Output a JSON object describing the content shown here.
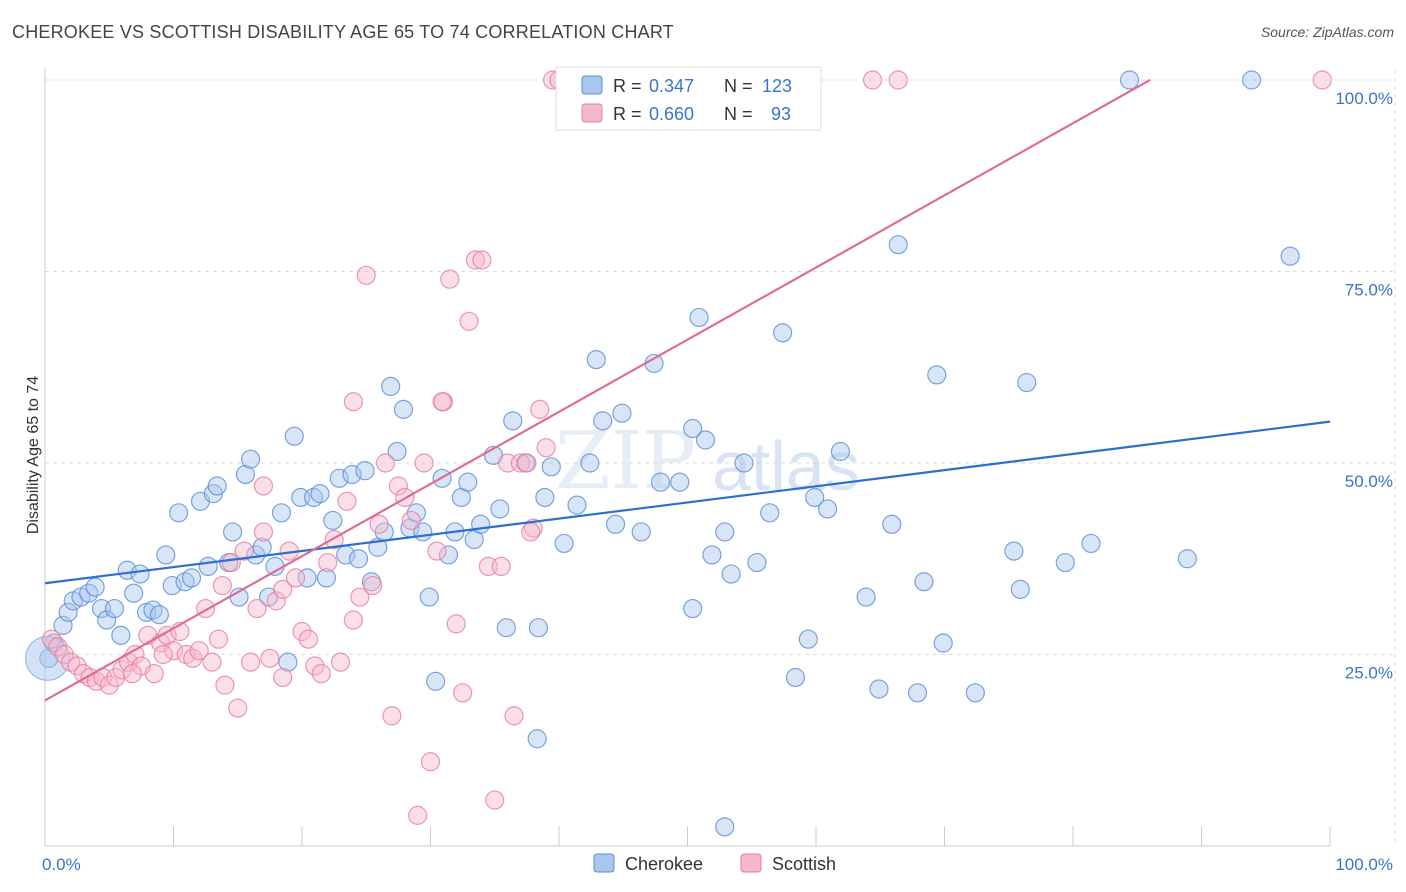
{
  "header": {
    "title": "CHEROKEE VS SCOTTISH DISABILITY AGE 65 TO 74 CORRELATION CHART",
    "source": "Source: ZipAtlas.com"
  },
  "watermark": {
    "zip": "ZIP",
    "atlas": "atlas"
  },
  "colors": {
    "cherokee_fill": "#a8c6ee",
    "cherokee_stroke": "#5a8fd6",
    "cherokee_line": "#2a6fd1",
    "scottish_fill": "#f6b9cc",
    "scottish_stroke": "#e67ea0",
    "scottish_line": "#e06b94",
    "tick_text": "#3a74c9",
    "grid": "#dcdcdc"
  },
  "legend_top": {
    "rows": [
      {
        "r_label": "R =",
        "r_value": "0.347",
        "n_label": "N =",
        "n_value": "123"
      },
      {
        "r_label": "R =",
        "r_value": "0.660",
        "n_label": "N =",
        "n_value": "93"
      }
    ]
  },
  "legend_bottom": {
    "items": [
      "Cherokee",
      "Scottish"
    ]
  },
  "chart_data": {
    "type": "scatter",
    "title": "CHEROKEE VS SCOTTISH DISABILITY AGE 65 TO 74 CORRELATION CHART",
    "xlabel": "",
    "ylabel": "Disability Age 65 to 74",
    "xlim": [
      0,
      100
    ],
    "ylim": [
      0,
      100
    ],
    "x_tick_labels": [
      "0.0%",
      "100.0%"
    ],
    "y_tick_labels": [
      "25.0%",
      "50.0%",
      "75.0%",
      "100.0%"
    ],
    "y_ticks": [
      25,
      50,
      75,
      100
    ],
    "grid": true,
    "legend_position": "top-center",
    "series": [
      {
        "name": "Cherokee",
        "r": 0.347,
        "n": 123,
        "trend": {
          "x0": 0,
          "y0": 34.3,
          "x1": 100,
          "y1": 55.4
        },
        "points": [
          [
            0.3,
            24.5
          ],
          [
            0.7,
            26.5
          ],
          [
            1.4,
            28.8
          ],
          [
            1.8,
            30.5
          ],
          [
            2.2,
            32.0
          ],
          [
            2.8,
            32.5
          ],
          [
            3.4,
            33.0
          ],
          [
            3.9,
            33.8
          ],
          [
            4.4,
            31.0
          ],
          [
            4.8,
            29.5
          ],
          [
            5.4,
            31.0
          ],
          [
            5.9,
            27.5
          ],
          [
            6.4,
            36.0
          ],
          [
            6.9,
            33.0
          ],
          [
            7.4,
            35.5
          ],
          [
            7.9,
            30.5
          ],
          [
            8.4,
            30.8
          ],
          [
            8.9,
            30.2
          ],
          [
            9.4,
            38.0
          ],
          [
            9.9,
            34.0
          ],
          [
            10.4,
            43.5
          ],
          [
            10.9,
            34.5
          ],
          [
            11.4,
            35.0
          ],
          [
            12.1,
            45.0
          ],
          [
            12.7,
            36.5
          ],
          [
            13.1,
            46.0
          ],
          [
            13.4,
            47.0
          ],
          [
            14.3,
            37.0
          ],
          [
            14.6,
            41.0
          ],
          [
            15.1,
            32.5
          ],
          [
            15.6,
            48.5
          ],
          [
            16.0,
            50.5
          ],
          [
            16.4,
            38.0
          ],
          [
            16.9,
            39.0
          ],
          [
            17.4,
            32.5
          ],
          [
            17.9,
            36.5
          ],
          [
            18.4,
            43.5
          ],
          [
            18.9,
            24.0
          ],
          [
            19.4,
            53.5
          ],
          [
            19.9,
            45.5
          ],
          [
            20.4,
            35.0
          ],
          [
            20.9,
            45.5
          ],
          [
            21.4,
            46.0
          ],
          [
            21.9,
            35.0
          ],
          [
            22.4,
            42.5
          ],
          [
            22.9,
            48.0
          ],
          [
            23.4,
            38.0
          ],
          [
            23.9,
            48.5
          ],
          [
            24.4,
            37.5
          ],
          [
            24.9,
            49.0
          ],
          [
            25.4,
            34.5
          ],
          [
            25.9,
            39.0
          ],
          [
            26.4,
            41.0
          ],
          [
            26.9,
            60.0
          ],
          [
            27.4,
            51.5
          ],
          [
            27.9,
            57.0
          ],
          [
            28.4,
            41.5
          ],
          [
            28.9,
            43.5
          ],
          [
            29.4,
            41.0
          ],
          [
            29.9,
            32.5
          ],
          [
            30.4,
            21.5
          ],
          [
            30.9,
            48.0
          ],
          [
            31.4,
            38.0
          ],
          [
            31.9,
            41.0
          ],
          [
            32.4,
            45.5
          ],
          [
            32.9,
            47.5
          ],
          [
            33.4,
            40.0
          ],
          [
            33.9,
            42.0
          ],
          [
            34.9,
            51.0
          ],
          [
            35.4,
            44.0
          ],
          [
            35.9,
            28.5
          ],
          [
            36.4,
            55.5
          ],
          [
            37.4,
            50.0
          ],
          [
            38.4,
            28.5
          ],
          [
            38.9,
            45.5
          ],
          [
            39.4,
            49.5
          ],
          [
            40.4,
            39.5
          ],
          [
            41.4,
            44.5
          ],
          [
            42.4,
            50.0
          ],
          [
            42.9,
            63.5
          ],
          [
            43.4,
            55.5
          ],
          [
            44.4,
            42.0
          ],
          [
            44.9,
            56.5
          ],
          [
            46.4,
            41.0
          ],
          [
            47.4,
            63.0
          ],
          [
            47.9,
            47.5
          ],
          [
            49.4,
            47.5
          ],
          [
            50.4,
            54.5
          ],
          [
            50.9,
            69.0
          ],
          [
            51.4,
            53.0
          ],
          [
            51.9,
            38.0
          ],
          [
            52.9,
            41.0
          ],
          [
            53.4,
            35.5
          ],
          [
            54.4,
            50.0
          ],
          [
            55.4,
            37.0
          ],
          [
            56.4,
            43.5
          ],
          [
            57.4,
            67.0
          ],
          [
            58.4,
            22.0
          ],
          [
            59.4,
            27.0
          ],
          [
            59.9,
            45.5
          ],
          [
            60.9,
            44.0
          ],
          [
            61.9,
            51.5
          ],
          [
            63.9,
            32.5
          ],
          [
            64.9,
            20.5
          ],
          [
            65.9,
            42.0
          ],
          [
            66.4,
            78.5
          ],
          [
            67.9,
            20.0
          ],
          [
            68.4,
            34.5
          ],
          [
            69.4,
            61.5
          ],
          [
            69.9,
            26.5
          ],
          [
            72.4,
            20.0
          ],
          [
            75.4,
            38.5
          ],
          [
            75.9,
            33.5
          ],
          [
            76.4,
            60.5
          ],
          [
            79.4,
            37.0
          ],
          [
            81.4,
            39.5
          ],
          [
            84.4,
            100.0
          ],
          [
            88.9,
            37.5
          ],
          [
            93.9,
            100.0
          ],
          [
            96.9,
            77.0
          ],
          [
            38.3,
            14.0
          ],
          [
            52.9,
            2.5
          ],
          [
            50.4,
            31.0
          ]
        ]
      },
      {
        "name": "Scottish",
        "r": 0.66,
        "n": 93,
        "trend": {
          "x0": 0,
          "y0": 19.0,
          "x1": 100,
          "y1": 113.2
        },
        "points": [
          [
            0.5,
            27.0
          ],
          [
            1.0,
            26.0
          ],
          [
            1.5,
            25.0
          ],
          [
            2.0,
            24.0
          ],
          [
            2.5,
            23.5
          ],
          [
            3.0,
            22.5
          ],
          [
            3.5,
            22.0
          ],
          [
            4.0,
            21.5
          ],
          [
            4.5,
            22.0
          ],
          [
            5.0,
            21.0
          ],
          [
            5.5,
            22.0
          ],
          [
            6.0,
            23.0
          ],
          [
            6.5,
            24.0
          ],
          [
            7.0,
            25.0
          ],
          [
            7.5,
            23.5
          ],
          [
            8.0,
            27.5
          ],
          [
            8.5,
            22.5
          ],
          [
            9.0,
            26.5
          ],
          [
            9.5,
            27.5
          ],
          [
            10.0,
            25.5
          ],
          [
            10.5,
            28.0
          ],
          [
            11.0,
            25.0
          ],
          [
            11.5,
            24.5
          ],
          [
            12.0,
            25.5
          ],
          [
            12.5,
            31.0
          ],
          [
            13.0,
            24.0
          ],
          [
            13.5,
            27.0
          ],
          [
            14.0,
            21.0
          ],
          [
            14.5,
            37.0
          ],
          [
            15.0,
            18.0
          ],
          [
            15.5,
            38.5
          ],
          [
            16.0,
            24.0
          ],
          [
            16.5,
            31.0
          ],
          [
            17.0,
            41.0
          ],
          [
            17.5,
            24.5
          ],
          [
            18.0,
            32.0
          ],
          [
            18.5,
            33.5
          ],
          [
            19.0,
            38.5
          ],
          [
            19.5,
            35.0
          ],
          [
            20.0,
            28.0
          ],
          [
            20.5,
            27.0
          ],
          [
            21.0,
            23.5
          ],
          [
            21.5,
            22.5
          ],
          [
            22.0,
            37.0
          ],
          [
            22.5,
            40.0
          ],
          [
            23.0,
            24.0
          ],
          [
            23.5,
            45.0
          ],
          [
            24.0,
            58.0
          ],
          [
            24.5,
            32.5
          ],
          [
            25.0,
            74.5
          ],
          [
            25.5,
            34.0
          ],
          [
            26.0,
            42.0
          ],
          [
            26.5,
            50.0
          ],
          [
            27.0,
            17.0
          ],
          [
            27.5,
            47.0
          ],
          [
            28.0,
            45.5
          ],
          [
            28.5,
            42.5
          ],
          [
            29.0,
            4.0
          ],
          [
            29.5,
            50.0
          ],
          [
            30.0,
            11.0
          ],
          [
            30.5,
            38.5
          ],
          [
            31.0,
            58.0
          ],
          [
            31.5,
            74.0
          ],
          [
            32.0,
            29.0
          ],
          [
            32.5,
            20.0
          ],
          [
            33.0,
            68.5
          ],
          [
            33.5,
            76.5
          ],
          [
            34.0,
            76.5
          ],
          [
            34.5,
            36.5
          ],
          [
            35.0,
            6.0
          ],
          [
            35.5,
            36.5
          ],
          [
            36.0,
            50.0
          ],
          [
            36.5,
            17.0
          ],
          [
            37.0,
            50.0
          ],
          [
            37.5,
            50.0
          ],
          [
            38.0,
            41.5
          ],
          [
            38.5,
            57.0
          ],
          [
            39.0,
            52.0
          ],
          [
            39.5,
            100.0
          ],
          [
            40.0,
            100.0
          ],
          [
            40.5,
            100.0
          ],
          [
            41.0,
            100.0
          ],
          [
            64.4,
            100.0
          ],
          [
            66.4,
            100.0
          ],
          [
            99.4,
            100.0
          ],
          [
            37.8,
            41.0
          ],
          [
            17.0,
            47.0
          ],
          [
            13.8,
            34.0
          ],
          [
            9.2,
            25.0
          ],
          [
            6.8,
            22.5
          ],
          [
            18.5,
            22.0
          ],
          [
            24.0,
            29.5
          ],
          [
            30.9,
            58.0
          ]
        ]
      }
    ]
  }
}
